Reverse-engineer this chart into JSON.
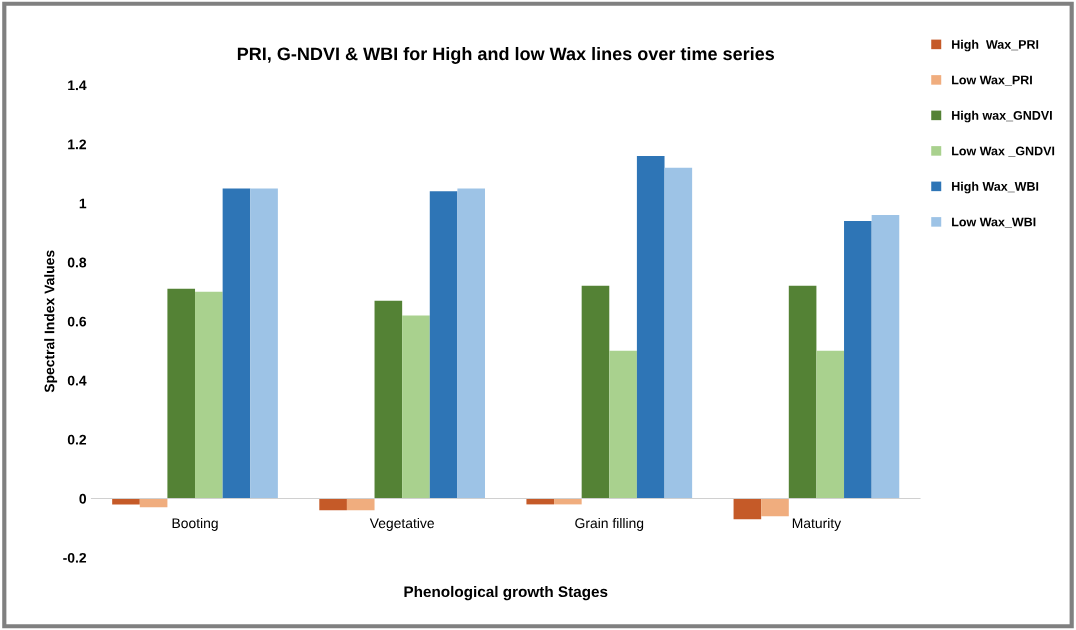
{
  "chart_data": {
    "type": "bar",
    "title": "PRI, G-NDVI & WBI for High and low Wax lines over time series",
    "xlabel": "Phenological growth Stages",
    "ylabel": "Spectral Index Values",
    "categories": [
      "Booting",
      "Vegetative",
      "Grain filling",
      "Maturity"
    ],
    "series": [
      {
        "name": "High  Wax_PRI",
        "color": "#c55a28",
        "values": [
          -0.02,
          -0.04,
          -0.02,
          -0.07
        ]
      },
      {
        "name": "Low Wax_PRI",
        "color": "#f0ad7e",
        "values": [
          -0.03,
          -0.04,
          -0.02,
          -0.06
        ]
      },
      {
        "name": "High wax_GNDVI",
        "color": "#548235",
        "values": [
          0.71,
          0.67,
          0.72,
          0.72
        ]
      },
      {
        "name": "Low Wax _GNDVI",
        "color": "#a9d18e",
        "values": [
          0.7,
          0.62,
          0.5,
          0.5
        ]
      },
      {
        "name": "High Wax_WBI",
        "color": "#2e75b6",
        "values": [
          1.05,
          1.04,
          1.16,
          0.94
        ]
      },
      {
        "name": "Low Wax_WBI",
        "color": "#9dc3e6",
        "values": [
          1.05,
          1.05,
          1.12,
          0.96
        ]
      }
    ],
    "ylim": [
      -0.2,
      1.4
    ],
    "yticks": [
      {
        "value": -0.2,
        "label": "-0.2"
      },
      0,
      0.2,
      0.4,
      0.6,
      0.8,
      1,
      1.2,
      1.4
    ],
    "grid": false,
    "legend": "top right"
  }
}
